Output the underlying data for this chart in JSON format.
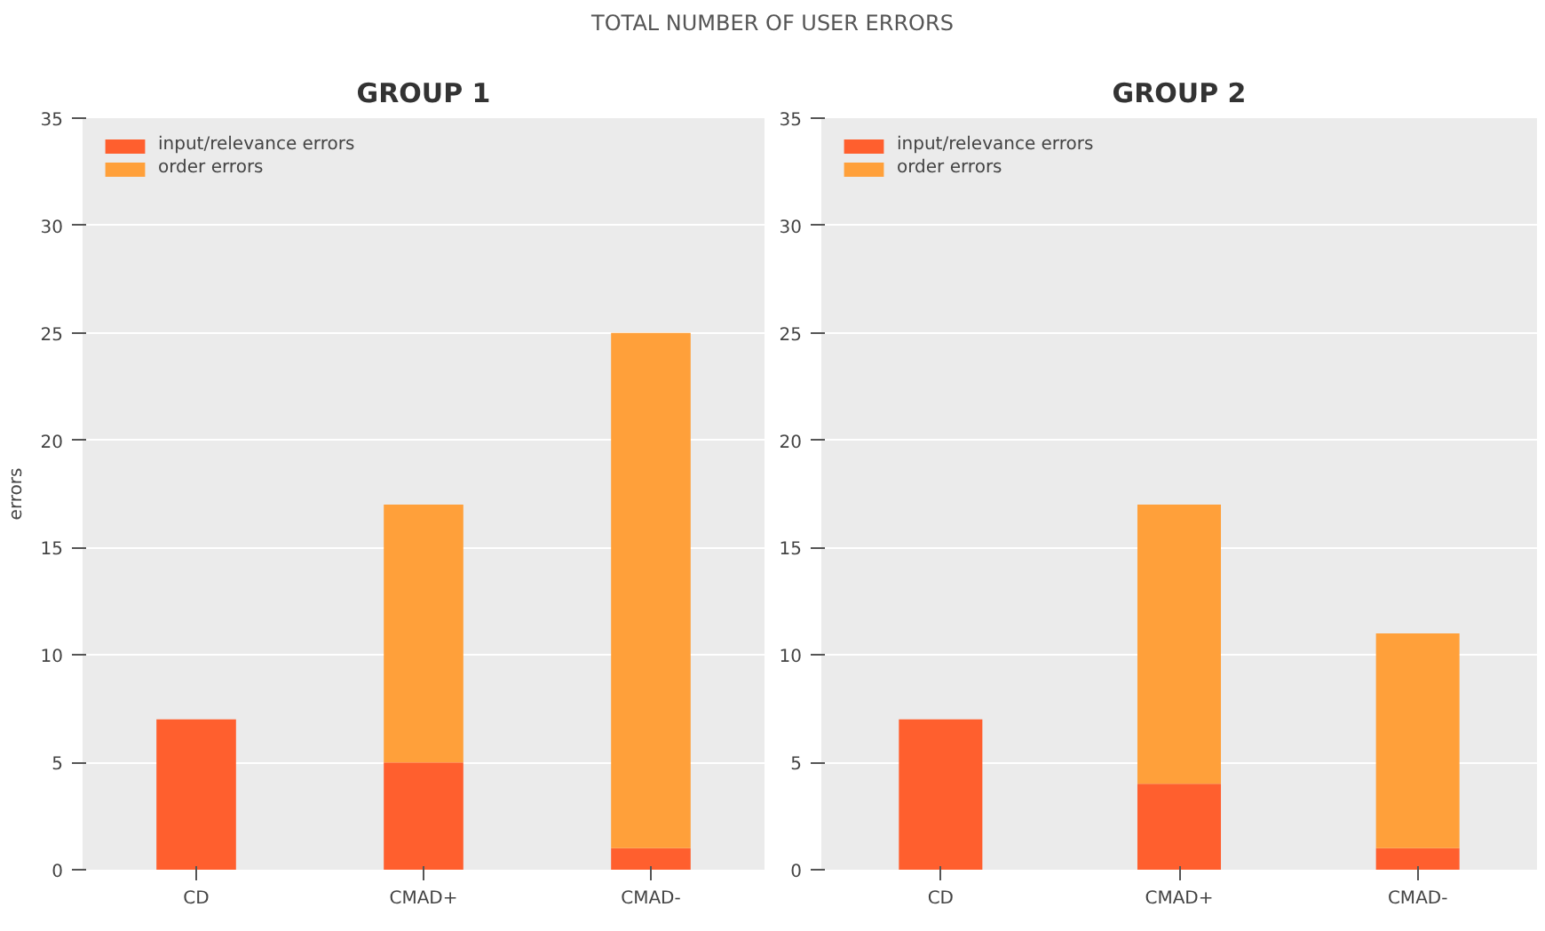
{
  "chart_data": [
    {
      "type": "bar",
      "title": "GROUP 1",
      "ylabel": "errors",
      "annotations": [
        "TOTAL NUMBER OF USER ERRORS"
      ],
      "categories": [
        "CD",
        "CMAD+",
        "CMAD-"
      ],
      "stacked": true,
      "series": [
        {
          "name": "input/relevance errors",
          "color": "#ff5f2e",
          "values": [
            7,
            5,
            1
          ]
        },
        {
          "name": "order errors",
          "color": "#ffa03a",
          "values": [
            0,
            12,
            24
          ]
        }
      ],
      "ylim": [
        0,
        35
      ],
      "yticks": [
        0,
        5,
        10,
        15,
        20,
        25,
        30,
        35
      ],
      "grid": "y",
      "legend": "top left"
    },
    {
      "type": "bar",
      "title": "GROUP 2",
      "categories": [
        "CD",
        "CMAD+",
        "CMAD-"
      ],
      "stacked": true,
      "series": [
        {
          "name": "input/relevance errors",
          "color": "#ff5f2e",
          "values": [
            7,
            4,
            1
          ]
        },
        {
          "name": "order errors",
          "color": "#ffa03a",
          "values": [
            0,
            13,
            10
          ]
        }
      ],
      "ylim": [
        0,
        35
      ],
      "yticks": [
        0,
        5,
        10,
        15,
        20,
        25,
        30,
        35
      ],
      "grid": "y",
      "legend": "top left"
    }
  ]
}
